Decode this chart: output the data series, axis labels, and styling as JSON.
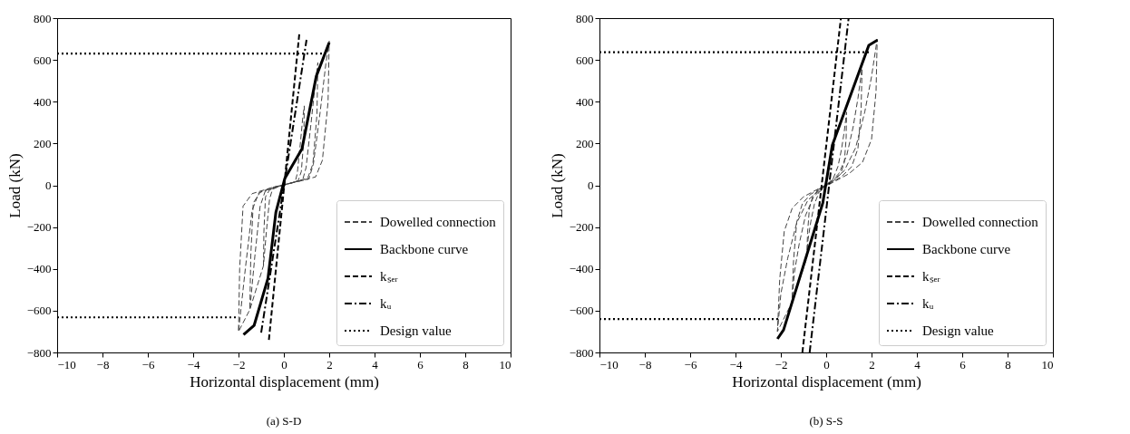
{
  "chart_data": [
    {
      "type": "line",
      "title": "(a) S-D",
      "xlabel": "Horizontal displacement (mm)",
      "ylabel": "Load (kN)",
      "xlim": [
        -10,
        10
      ],
      "ylim": [
        -800,
        800
      ],
      "xticks": [
        -10,
        -8,
        -6,
        -4,
        -2,
        0,
        2,
        4,
        6,
        8,
        10
      ],
      "yticks": [
        -800,
        -600,
        -400,
        -200,
        0,
        200,
        400,
        600,
        800
      ],
      "grid": false,
      "legend": "bottom right",
      "series": [
        {
          "name": "Dowelled connection",
          "color": "#444444",
          "line_style": "dashed",
          "x": [
            -0.9,
            -0.88,
            -0.81,
            -0.63,
            -0.23,
            0.23,
            0.5,
            0.59,
            0.72,
            0.83,
            0.9,
            0.88,
            0.77,
            0.63,
            0.23,
            -0.23,
            -0.5,
            -0.63,
            -0.77,
            -0.9,
            -1.5,
            -1.46,
            -1.35,
            -1.05,
            -0.38,
            0.38,
            0.83,
            0.98,
            1.2,
            1.39,
            1.5,
            1.46,
            1.28,
            1.05,
            0.38,
            -0.38,
            -0.83,
            -1.05,
            -1.28,
            -1.5,
            -2.0,
            -1.95,
            -1.8,
            -1.4,
            -0.5,
            0.5,
            1.1,
            1.3,
            1.6,
            1.85,
            2.0,
            1.95,
            1.7,
            1.4,
            0.5,
            -0.5,
            -1.1,
            -1.4,
            -1.7,
            -2.0
          ],
          "values": [
            -385,
            -220,
            -55,
            -22,
            -6,
            8,
            17,
            55,
            193,
            319,
            380,
            220,
            66,
            22,
            8,
            -6,
            -19,
            -66,
            -220,
            -385,
            -595,
            -340,
            -85,
            -34,
            -9,
            13,
            26,
            85,
            298,
            493,
            587,
            340,
            102,
            34,
            13,
            -9,
            -30,
            -102,
            -340,
            -595,
            -700,
            -400,
            -100,
            -40,
            -10,
            15,
            30,
            100,
            350,
            580,
            690,
            400,
            120,
            40,
            15,
            -10,
            -35,
            -120,
            -400,
            -700
          ]
        },
        {
          "name": "Backbone curve",
          "color": "#000000",
          "line_style": "solid",
          "x": [
            -1.78,
            -1.31,
            -0.7,
            -0.35,
            0.04,
            0.8,
            1.43,
            2.0
          ],
          "values": [
            -715,
            -670,
            -445,
            -128,
            32,
            175,
            522,
            683
          ]
        },
        {
          "name": "kₛₑᵣ",
          "color": "#000000",
          "line_style": "dashed",
          "x": [
            -0.66,
            0.69
          ],
          "values": [
            -740,
            735
          ]
        },
        {
          "name": "kᵤ",
          "color": "#000000",
          "line_style": "dashdot",
          "x": [
            -1.0,
            1.0
          ],
          "values": [
            -705,
            696
          ]
        },
        {
          "name": "Design value",
          "color": "#000000",
          "line_style": "dotted",
          "x": [
            -10,
            1.7,
            0,
            -10,
            -2.0
          ],
          "values": [
            630,
            630,
            null,
            -632,
            -632
          ]
        }
      ]
    },
    {
      "type": "line",
      "title": "(b) S-S",
      "xlabel": "Horizontal displacement (mm)",
      "ylabel": "Load (kN)",
      "xlim": [
        -10,
        10
      ],
      "ylim": [
        -800,
        800
      ],
      "xticks": [
        -10,
        -8,
        -6,
        -4,
        -2,
        0,
        2,
        4,
        6,
        8,
        10
      ],
      "yticks": [
        -800,
        -600,
        -400,
        -200,
        0,
        200,
        400,
        600,
        800
      ],
      "grid": false,
      "legend": "bottom right",
      "series": [
        {
          "name": "Dowelled connection",
          "color": "#444444",
          "line_style": "dashed",
          "x": [
            -0.86,
            -0.82,
            -0.74,
            -0.6,
            -0.4,
            -0.16,
            0.08,
            0.32,
            0.52,
            0.68,
            0.8,
            0.9,
            0.88,
            0.8,
            0.64,
            0.4,
            0.16,
            -0.08,
            -0.32,
            -0.52,
            -0.68,
            -0.8,
            -0.86,
            -1.51,
            -1.44,
            -1.3,
            -1.05,
            -0.7,
            -0.28,
            0.14,
            0.56,
            0.91,
            1.19,
            1.4,
            1.58,
            1.54,
            1.4,
            1.12,
            0.7,
            0.28,
            -0.14,
            -0.56,
            -0.91,
            -1.19,
            -1.4,
            -1.51,
            -2.15,
            -2.05,
            -1.85,
            -1.5,
            -1.0,
            -0.4,
            0.2,
            0.8,
            1.3,
            1.7,
            2.0,
            2.25,
            2.2,
            2.0,
            1.6,
            1.0,
            0.4,
            -0.2,
            -0.8,
            -1.3,
            -1.7,
            -2.0,
            -2.15
          ],
          "values": [
            -350,
            -225,
            -110,
            -55,
            -28,
            -10,
            8,
            35,
            90,
            175,
            260,
            350,
            225,
            110,
            55,
            28,
            10,
            -8,
            -35,
            -90,
            -175,
            -260,
            -350,
            -560,
            -360,
            -176,
            -88,
            -44,
            -16,
            12,
            56,
            144,
            280,
            416,
            560,
            360,
            176,
            88,
            44,
            16,
            -12,
            -56,
            -144,
            -280,
            -416,
            -560,
            -700,
            -450,
            -220,
            -110,
            -55,
            -20,
            15,
            70,
            180,
            350,
            520,
            700,
            450,
            220,
            110,
            55,
            20,
            -15,
            -70,
            -180,
            -350,
            -520,
            -700
          ]
        },
        {
          "name": "Backbone curve",
          "color": "#000000",
          "line_style": "solid",
          "x": [
            -2.15,
            -1.88,
            -0.15,
            0.27,
            1.88,
            2.26
          ],
          "values": [
            -735,
            -692,
            -85,
            192,
            670,
            695
          ]
        },
        {
          "name": "kₛₑᵣ",
          "color": "#000000",
          "line_style": "dashed",
          "x": [
            -1.05,
            0.65
          ],
          "values": [
            -800,
            800
          ]
        },
        {
          "name": "kᵤ",
          "color": "#000000",
          "line_style": "dashdot",
          "x": [
            -0.73,
            0.99
          ],
          "values": [
            -800,
            800
          ]
        },
        {
          "name": "Design value",
          "color": "#000000",
          "line_style": "dotted",
          "x": [
            -10,
            1.95,
            0,
            -10,
            -2.1
          ],
          "values": [
            637,
            637,
            null,
            -640,
            -640
          ]
        }
      ]
    }
  ]
}
